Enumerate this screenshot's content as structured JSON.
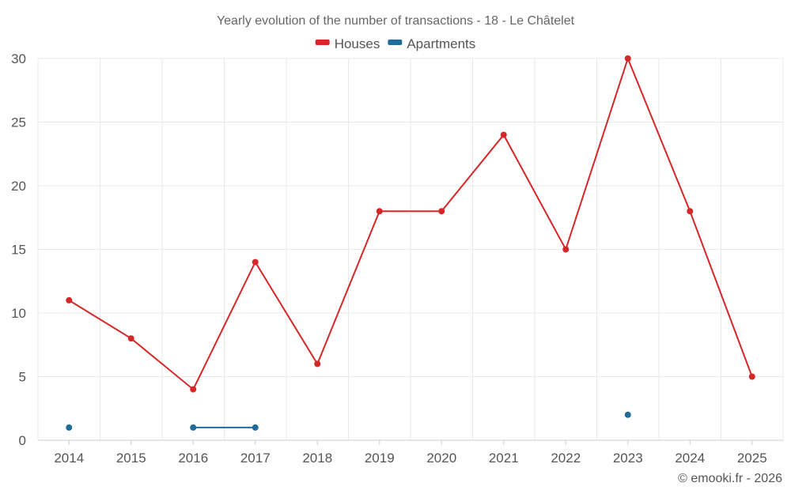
{
  "chart_data": {
    "type": "line",
    "title": "Yearly evolution of the number of transactions - 18 - Le Châtelet",
    "categories": [
      "2014",
      "2015",
      "2016",
      "2017",
      "2018",
      "2019",
      "2020",
      "2021",
      "2022",
      "2023",
      "2024",
      "2025"
    ],
    "ylim": [
      0,
      30
    ],
    "yticks": [
      0,
      5,
      10,
      15,
      20,
      25,
      30
    ],
    "xlabel": "",
    "ylabel": "",
    "grid": true,
    "legend_position": "top-center",
    "series": [
      {
        "name": "Houses",
        "color": "#d62728",
        "values": [
          11,
          8,
          4,
          14,
          6,
          18,
          18,
          24,
          15,
          30,
          18,
          5
        ]
      },
      {
        "name": "Apartments",
        "color": "#1f6c9c",
        "values": [
          1,
          null,
          1,
          1,
          null,
          null,
          null,
          null,
          null,
          2,
          null,
          null
        ]
      }
    ]
  },
  "credit": "© emooki.fr - 2026"
}
